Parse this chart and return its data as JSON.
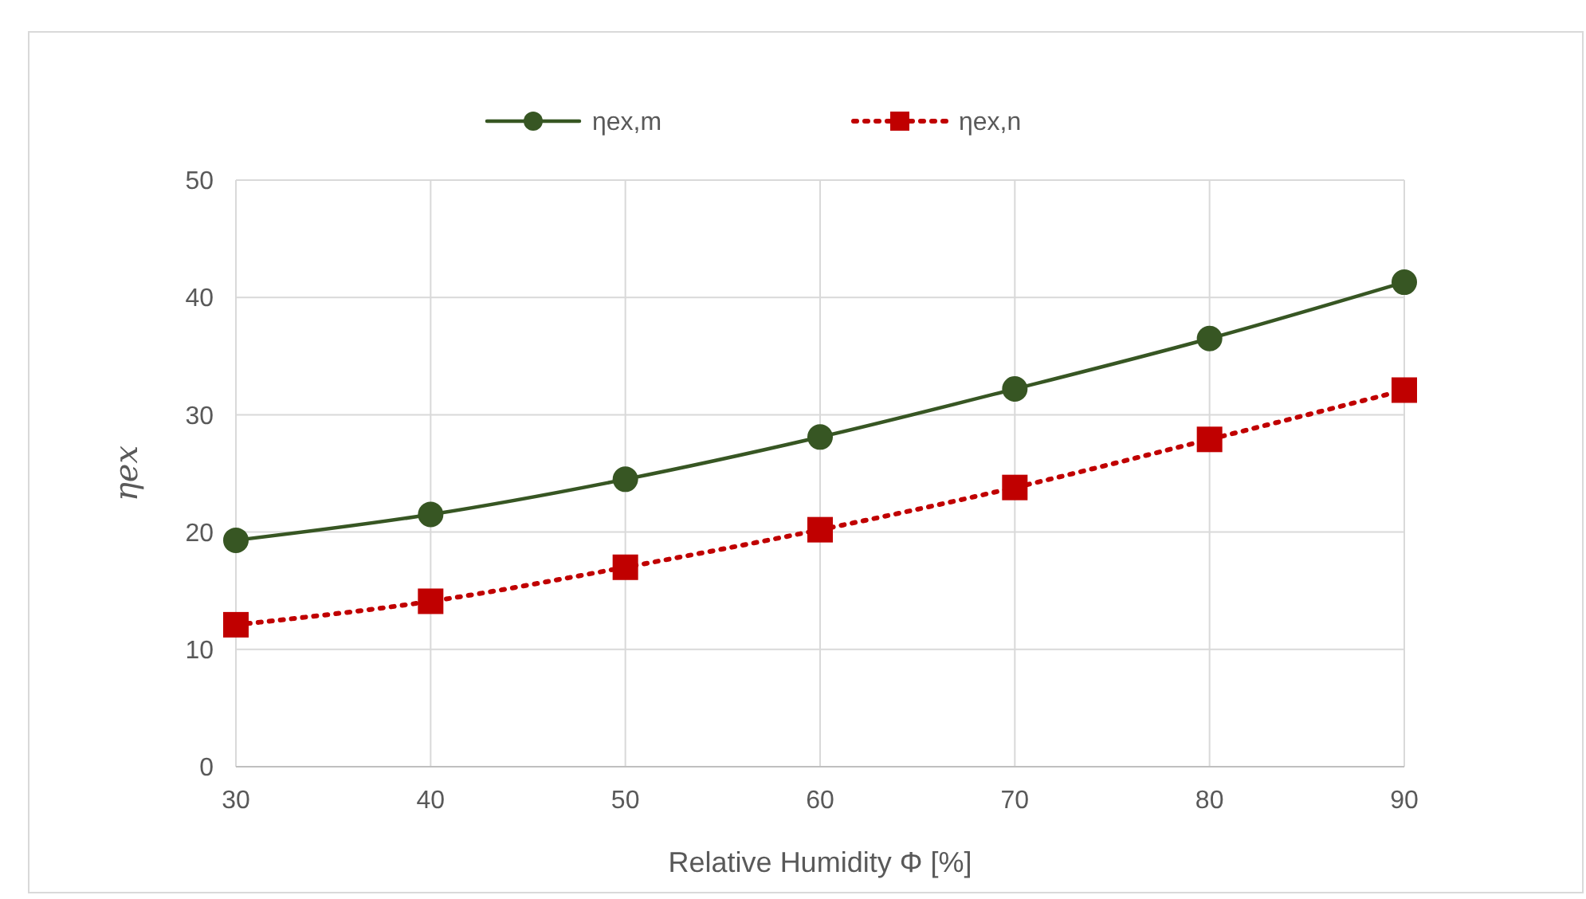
{
  "chart_data": {
    "type": "line",
    "xlabel": "Relative Humidity Φ [%]",
    "ylabel": "ηex",
    "x": [
      30,
      40,
      50,
      60,
      70,
      80,
      90
    ],
    "series": [
      {
        "name": "ηex,m",
        "color": "#375623",
        "marker": "circle",
        "line_style": "solid",
        "values": [
          19.3,
          21.5,
          24.5,
          28.1,
          32.2,
          36.5,
          41.3
        ]
      },
      {
        "name": "ηex,n",
        "color": "#c00000",
        "marker": "square",
        "line_style": "dotted",
        "values": [
          12.1,
          14.1,
          17.0,
          20.2,
          23.8,
          27.9,
          32.1
        ]
      }
    ],
    "xlim": [
      30,
      90
    ],
    "xticks": [
      30,
      40,
      50,
      60,
      70,
      80,
      90
    ],
    "ylim": [
      0,
      50
    ],
    "yticks": [
      0,
      10,
      20,
      30,
      40,
      50
    ],
    "grid": true,
    "legend": "top"
  }
}
